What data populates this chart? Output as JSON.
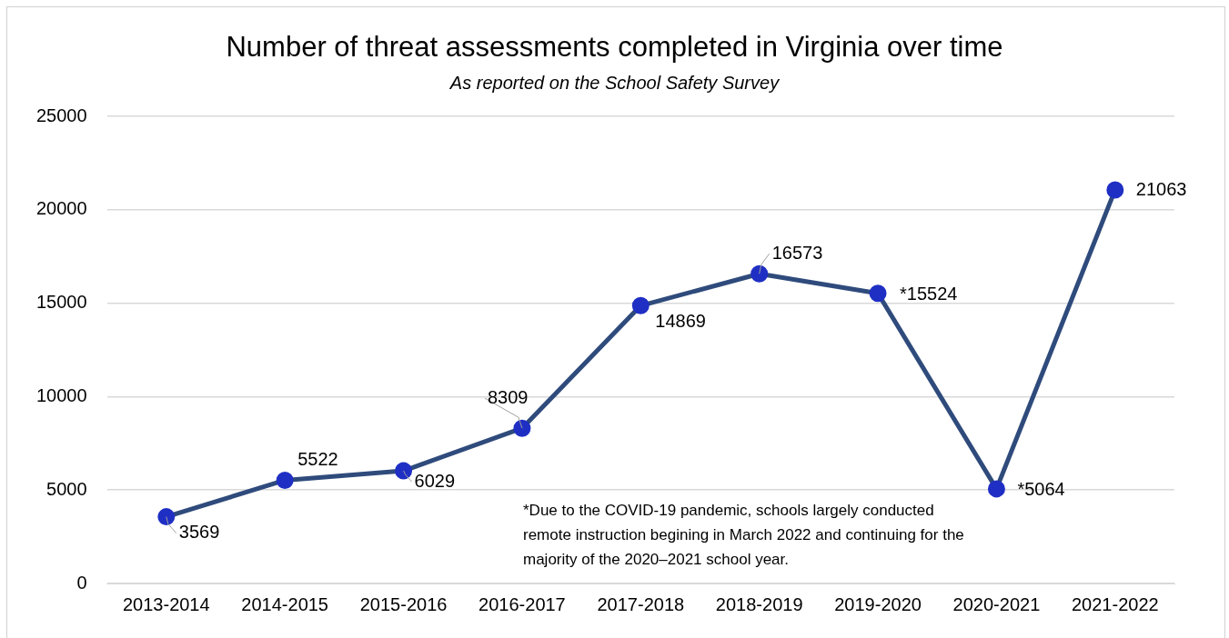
{
  "chart_data": {
    "type": "line",
    "title": "Number of threat assessments completed in Virginia over time",
    "subtitle": "As reported on the School Safety Survey",
    "categories": [
      "2013-2014",
      "2014-2015",
      "2015-2016",
      "2016-2017",
      "2017-2018",
      "2018-2019",
      "2019-2020",
      "2020-2021",
      "2021-2022"
    ],
    "series": [
      {
        "color": "#2f4b7c",
        "values": [
          3569,
          5522,
          6029,
          8309,
          14869,
          16573,
          15524,
          5064,
          21063
        ],
        "value_labels": [
          "3569",
          "5522",
          "6029",
          "8309",
          "14869",
          "16573",
          "*15524",
          "*5064",
          "21063"
        ]
      }
    ],
    "ylim": [
      0,
      25000
    ],
    "yticks": [
      0,
      5000,
      10000,
      15000,
      20000,
      25000
    ],
    "grid": "y",
    "legend": false,
    "marker": "circle",
    "line_style": "solid",
    "annotations": [
      "*Due to the COVID-19 pandemic, schools largely conducted remote instruction begining in March 2022 and continuing for the majority of the 2020–2021 school year."
    ]
  }
}
